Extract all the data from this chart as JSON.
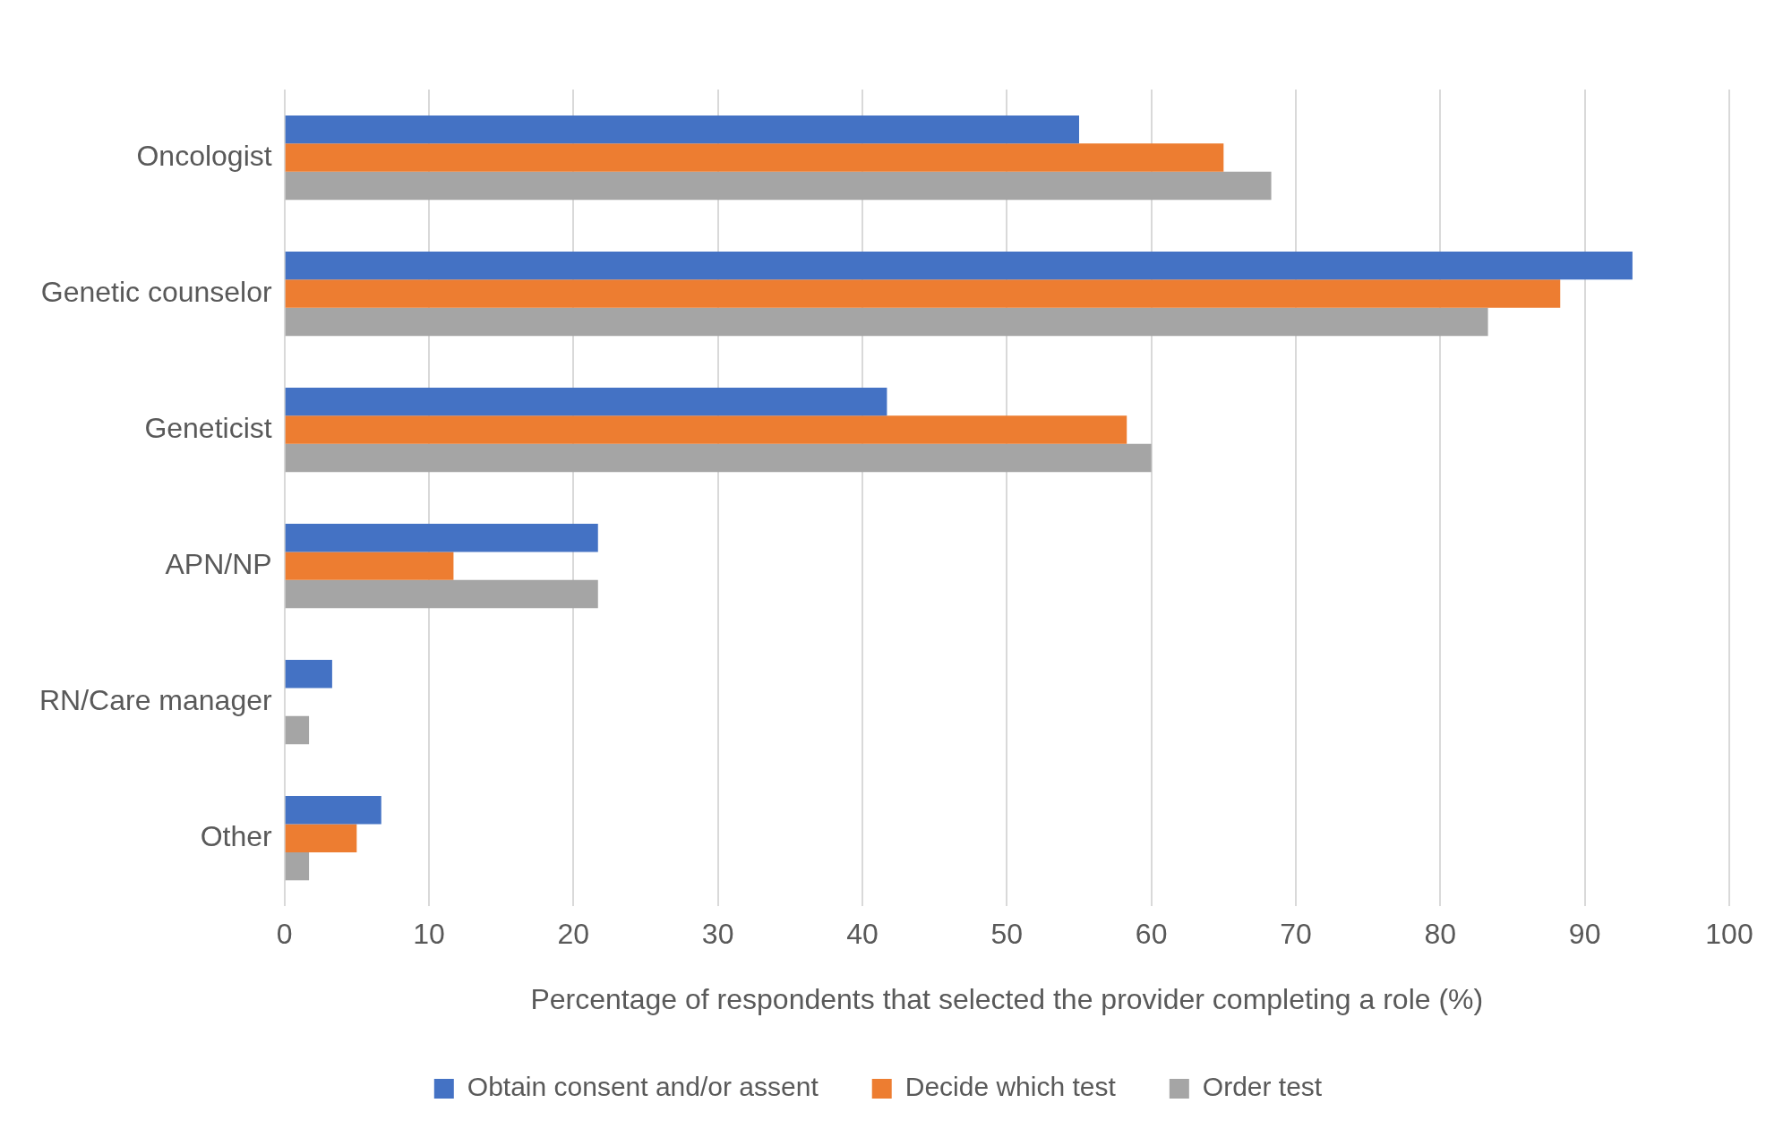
{
  "chart_data": {
    "type": "bar",
    "orientation": "horizontal",
    "xlabel": "Percentage of respondents that selected the provider completing a role (%)",
    "categories": [
      "Oncologist",
      "Genetic counselor",
      "Geneticist",
      "APN/NP",
      "RN/Care manager",
      "Other"
    ],
    "series": [
      {
        "name": "Obtain consent and/or assent",
        "color": "#4472c4",
        "values": [
          55,
          93.3,
          41.7,
          21.7,
          3.3,
          6.7
        ]
      },
      {
        "name": "Decide which test",
        "color": "#ed7d31",
        "values": [
          65,
          88.3,
          58.3,
          11.7,
          0,
          5
        ]
      },
      {
        "name": "Order test",
        "color": "#a5a5a5",
        "values": [
          68.3,
          83.3,
          60,
          21.7,
          1.7,
          1.7
        ]
      }
    ],
    "xlim": [
      0,
      100
    ],
    "xticks": [
      0,
      10,
      20,
      30,
      40,
      50,
      60,
      70,
      80,
      90,
      100
    ],
    "grid": "x",
    "legend": "bottom"
  }
}
